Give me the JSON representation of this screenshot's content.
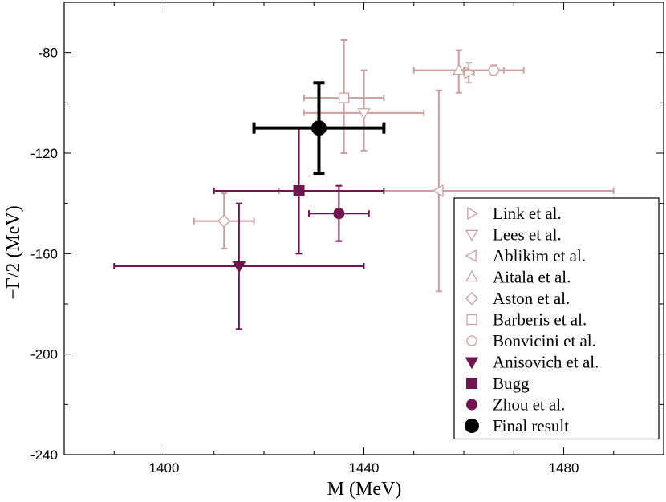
{
  "chart_data": {
    "type": "scatter",
    "xlabel": "M (MeV)",
    "ylabel": "−Γ/2 (MeV)",
    "xlim": [
      1380,
      1500
    ],
    "ylim": [
      -240,
      -60
    ],
    "xticks": [
      1400,
      1440,
      1480
    ],
    "yticks": [
      -80,
      -120,
      -160,
      -200,
      -240
    ],
    "grid": false,
    "legend_position": "bottom-right",
    "series": [
      {
        "name": "Link et al.",
        "marker": "triangle-right",
        "filled": false,
        "color": "#c8a0a0",
        "points": [
          {
            "x": 1461,
            "y": -88,
            "xerr": [
              1,
              1
            ],
            "yerr": [
              4,
              4
            ]
          }
        ]
      },
      {
        "name": "Lees et al.",
        "marker": "triangle-down",
        "filled": false,
        "color": "#c8a0a0",
        "points": [
          {
            "x": 1440,
            "y": -104,
            "xerr": [
              12,
              12
            ],
            "yerr": [
              15,
              17
            ]
          }
        ]
      },
      {
        "name": "Ablikim et al.",
        "marker": "triangle-left",
        "filled": false,
        "color": "#c8a0a0",
        "points": [
          {
            "x": 1455,
            "y": -135,
            "xerr": [
              32,
              35
            ],
            "yerr": [
              40,
              40
            ]
          }
        ]
      },
      {
        "name": "Aitala et al.",
        "marker": "triangle-up",
        "filled": false,
        "color": "#c8a0a0",
        "points": [
          {
            "x": 1459,
            "y": -87,
            "xerr": [
              9,
              9
            ],
            "yerr": [
              9,
              8
            ]
          }
        ]
      },
      {
        "name": "Aston et al.",
        "marker": "diamond",
        "filled": false,
        "color": "#c8a0a0",
        "points": [
          {
            "x": 1412,
            "y": -147,
            "xerr": [
              6,
              6
            ],
            "yerr": [
              11,
              11
            ]
          }
        ]
      },
      {
        "name": "Barberis et al.",
        "marker": "square",
        "filled": false,
        "color": "#c8a0a0",
        "points": [
          {
            "x": 1436,
            "y": -98,
            "xerr": [
              8,
              8
            ],
            "yerr": [
              22,
              23
            ]
          }
        ]
      },
      {
        "name": "Bonvicini et al.",
        "marker": "circle",
        "filled": false,
        "color": "#c8a0a0",
        "points": [
          {
            "x": 1466,
            "y": -87,
            "xerr": [
              6,
              6
            ],
            "yerr": [
              2,
              2
            ]
          }
        ]
      },
      {
        "name": "Anisovich et al.",
        "marker": "triangle-down",
        "filled": true,
        "color": "#6e1650",
        "points": [
          {
            "x": 1415,
            "y": -165,
            "xerr": [
              25,
              25
            ],
            "yerr": [
              25,
              25
            ]
          }
        ]
      },
      {
        "name": "Bugg",
        "marker": "square",
        "filled": true,
        "color": "#6e1650",
        "points": [
          {
            "x": 1427,
            "y": -135,
            "xerr": [
              17,
              17
            ],
            "yerr": [
              25,
              25
            ]
          }
        ]
      },
      {
        "name": "Zhou et al.",
        "marker": "circle",
        "filled": true,
        "color": "#6e1650",
        "points": [
          {
            "x": 1435,
            "y": -144,
            "xerr": [
              6,
              6
            ],
            "yerr": [
              11,
              11
            ]
          }
        ]
      },
      {
        "name": "Final result",
        "marker": "circle",
        "filled": true,
        "color": "#000000",
        "bold": true,
        "points": [
          {
            "x": 1431,
            "y": -110,
            "xerr": [
              13,
              13
            ],
            "yerr": [
              18,
              18
            ]
          }
        ]
      }
    ]
  }
}
